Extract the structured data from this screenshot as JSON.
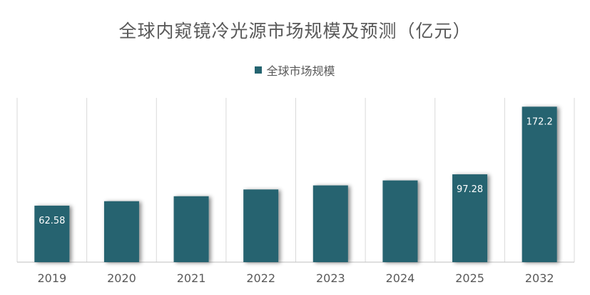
{
  "colors": {
    "bar": "#256470",
    "grid": "#d9d9d9",
    "axis": "#bfbfbf",
    "text": "#595959",
    "label": "#ffffff"
  },
  "chart_data": {
    "type": "bar",
    "title": "全球内窥镜冷光源市场规模及预测（亿元）",
    "xlabel": "",
    "ylabel": "",
    "categories": [
      "2019",
      "2020",
      "2021",
      "2022",
      "2023",
      "2024",
      "2025",
      "2032"
    ],
    "series": [
      {
        "name": "全球市场规模",
        "values": [
          62.58,
          67.5,
          73.0,
          80.5,
          85.0,
          90.5,
          97.28,
          172.2
        ]
      }
    ],
    "data_labels": [
      "62.58",
      "",
      "",
      "",
      "",
      "",
      "97.28",
      "172.2"
    ],
    "ylim": [
      0,
      182
    ],
    "grid": "vertical",
    "legend": "top-center"
  }
}
